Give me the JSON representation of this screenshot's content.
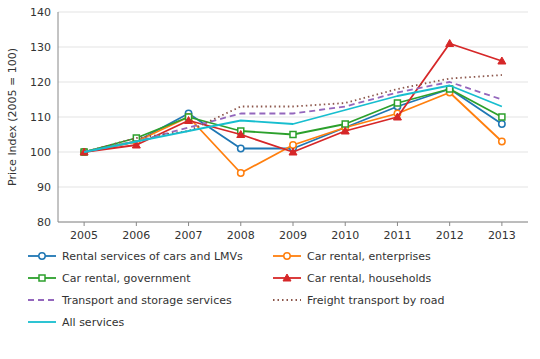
{
  "chart_data": {
    "type": "line",
    "y_label": "Price Index (2005 = 100)",
    "x": [
      2005,
      2006,
      2007,
      2008,
      2009,
      2010,
      2011,
      2012,
      2013
    ],
    "xlim": [
      2004.5,
      2013.5
    ],
    "xticks": [
      2005,
      2006,
      2007,
      2008,
      2009,
      2010,
      2011,
      2012,
      2013
    ],
    "ylim": [
      80,
      140
    ],
    "yticks": [
      80,
      90,
      100,
      110,
      120,
      130,
      140
    ],
    "grid": true,
    "legend": "bottom",
    "series": [
      {
        "name": "Rental services of cars and LMVs",
        "marker": "circle",
        "line_style": "solid",
        "values": [
          100,
          103,
          111,
          101,
          101,
          107,
          113,
          118,
          108
        ]
      },
      {
        "name": "Car rental, enterprises",
        "marker": "circle",
        "line_style": "solid",
        "values": [
          100,
          103,
          110,
          94,
          102,
          107,
          111,
          117,
          103
        ]
      },
      {
        "name": "Car rental, government",
        "marker": "square",
        "line_style": "solid",
        "values": [
          100,
          104,
          110,
          106,
          105,
          108,
          114,
          118,
          110
        ]
      },
      {
        "name": "Car rental, households",
        "marker": "triangle",
        "line_style": "solid",
        "values": [
          100,
          102,
          109,
          105,
          100,
          106,
          110,
          131,
          126
        ]
      },
      {
        "name": "Transport and storage services",
        "marker": "none",
        "line_style": "dashed",
        "values": [
          100,
          103,
          107,
          111,
          111,
          113,
          117,
          120,
          115
        ]
      },
      {
        "name": "Freight transport by road",
        "marker": "none",
        "line_style": "dotted",
        "values": [
          100,
          104,
          106,
          113,
          113,
          114,
          118,
          121,
          122
        ]
      },
      {
        "name": "All services",
        "marker": "none",
        "line_style": "solid",
        "values": [
          100,
          103,
          106,
          109,
          108,
          112,
          116,
          119,
          113
        ]
      }
    ]
  }
}
